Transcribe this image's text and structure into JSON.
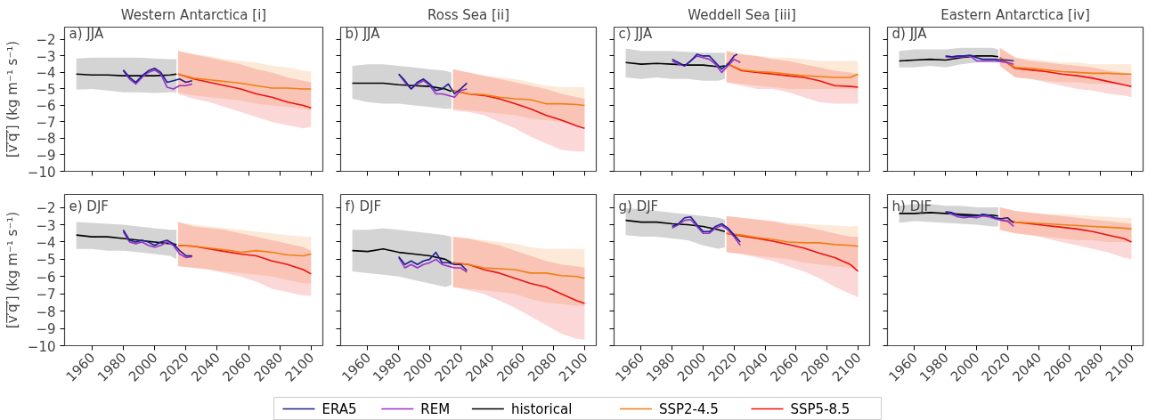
{
  "chart_data": [
    {
      "type": "line",
      "title": "Western Antarctica [i]",
      "ylabel": "[v̅′̅q̅′̅] (kg m⁻¹ s⁻¹)",
      "annotations": [
        "a) JJA"
      ],
      "tick_labels": "y",
      "legend": "bottom",
      "grid": false,
      "xlim": [
        1942.5,
        2107.5
      ],
      "ylim": [
        -10,
        -1.25
      ],
      "xticks": [
        1960,
        1980,
        2000,
        2020,
        2040,
        2060,
        2080,
        2100
      ],
      "yticks": [
        {
          "value": -2,
          "label": "−2"
        },
        {
          "value": -3,
          "label": "−3"
        },
        {
          "value": -4,
          "label": "−4"
        },
        {
          "value": -5,
          "label": "−5"
        },
        {
          "value": -6,
          "label": "−6"
        },
        {
          "value": -7,
          "label": "−7"
        },
        {
          "value": -8,
          "label": "−8"
        },
        {
          "value": -9,
          "label": "−9"
        },
        {
          "value": -10,
          "label": "−10"
        }
      ],
      "series": [
        {
          "name": "ERA5",
          "color": "#1f1f8f",
          "x": [
            1980,
            1984,
            1988,
            1992,
            1996,
            2000,
            2004,
            2008,
            2012,
            2016,
            2020,
            2024
          ],
          "values": [
            -3.85,
            -4.3,
            -4.6,
            -4.2,
            -3.9,
            -3.75,
            -4.0,
            -4.6,
            -4.5,
            -4.4,
            -4.6,
            -4.5
          ]
        },
        {
          "name": "REM",
          "color": "#9932cc",
          "x": [
            1980,
            1984,
            1988,
            1992,
            1996,
            2000,
            2004,
            2008,
            2012,
            2016,
            2020,
            2024
          ],
          "values": [
            -3.9,
            -4.4,
            -4.7,
            -4.3,
            -4.0,
            -3.85,
            -4.1,
            -4.9,
            -5.0,
            -4.8,
            -4.8,
            -4.7
          ]
        },
        {
          "name": "historical",
          "color": "#000000",
          "x": [
            1950,
            1960,
            1970,
            1980,
            1990,
            2000,
            2010,
            2014
          ],
          "values": [
            -4.1,
            -4.15,
            -4.15,
            -4.2,
            -4.2,
            -4.2,
            -4.15,
            -4.1
          ],
          "lower": [
            -5.05,
            -5.0,
            -5.1,
            -5.2,
            -5.2,
            -5.25,
            -5.2,
            -5.2
          ],
          "upper": [
            -3.15,
            -3.1,
            -3.1,
            -3.1,
            -3.1,
            -3.15,
            -3.2,
            -3.2
          ]
        },
        {
          "name": "SSP2-4.5",
          "color": "#f07f10",
          "x": [
            2015,
            2025,
            2035,
            2045,
            2055,
            2065,
            2075,
            2085,
            2095,
            2100
          ],
          "values": [
            -4.1,
            -4.35,
            -4.45,
            -4.55,
            -4.65,
            -4.8,
            -4.95,
            -4.95,
            -5.0,
            -5.0
          ],
          "lower": [
            -5.2,
            -5.4,
            -5.5,
            -5.6,
            -5.7,
            -5.9,
            -6.0,
            -6.1,
            -6.2,
            -6.3
          ],
          "upper": [
            -2.7,
            -2.9,
            -3.0,
            -3.2,
            -3.3,
            -3.4,
            -3.6,
            -3.7,
            -3.9,
            -3.95
          ]
        },
        {
          "name": "SSP5-8.5",
          "color": "#ee1111",
          "x": [
            2015,
            2025,
            2035,
            2045,
            2055,
            2065,
            2075,
            2085,
            2095,
            2100
          ],
          "values": [
            -4.1,
            -4.4,
            -4.6,
            -4.8,
            -5.0,
            -5.3,
            -5.5,
            -5.8,
            -6.0,
            -6.15
          ],
          "lower": [
            -5.3,
            -5.6,
            -5.8,
            -6.1,
            -6.4,
            -6.7,
            -7.0,
            -7.2,
            -7.4,
            -7.3
          ],
          "upper": [
            -2.7,
            -2.9,
            -3.1,
            -3.3,
            -3.5,
            -3.8,
            -4.0,
            -4.3,
            -4.5,
            -4.6
          ]
        }
      ]
    },
    {
      "type": "line",
      "title": "Ross Sea [ii]",
      "annotations": [
        "b) JJA"
      ],
      "tick_labels": false,
      "grid": false,
      "xlim": [
        1942.5,
        2107.5
      ],
      "ylim": [
        -10,
        -1.25
      ],
      "xticks": [
        1960,
        1980,
        2000,
        2020,
        2040,
        2060,
        2080,
        2100
      ],
      "yticks": [
        -2,
        -3,
        -4,
        -5,
        -6,
        -7,
        -8,
        -9,
        -10
      ],
      "series": [
        {
          "color": "#1f1f8f",
          "x": [
            1980,
            1984,
            1988,
            1992,
            1996,
            2000,
            2004,
            2008,
            2012,
            2016,
            2020,
            2024
          ],
          "values": [
            -4.1,
            -4.5,
            -5.0,
            -4.6,
            -4.4,
            -4.7,
            -5.1,
            -5.0,
            -4.7,
            -5.3,
            -5.0,
            -4.65
          ]
        },
        {
          "color": "#9932cc",
          "x": [
            1980,
            1984,
            1988,
            1992,
            1996,
            2000,
            2004,
            2008,
            2012,
            2016,
            2020,
            2024
          ],
          "values": [
            -4.1,
            -4.6,
            -5.0,
            -4.7,
            -4.5,
            -4.8,
            -5.3,
            -5.3,
            -5.4,
            -5.5,
            -5.1,
            -5.0
          ]
        },
        {
          "color": "#000000",
          "x": [
            1950,
            1960,
            1970,
            1980,
            1990,
            2000,
            2010,
            2014
          ],
          "values": [
            -4.65,
            -4.65,
            -4.65,
            -4.75,
            -4.8,
            -4.85,
            -5.0,
            -5.15
          ],
          "lower": [
            -5.6,
            -5.8,
            -5.9,
            -5.9,
            -6.0,
            -6.1,
            -6.2,
            -6.2
          ],
          "upper": [
            -3.6,
            -3.5,
            -3.5,
            -3.6,
            -3.7,
            -3.8,
            -3.9,
            -4.0
          ]
        },
        {
          "color": "#f07f10",
          "x": [
            2015,
            2025,
            2035,
            2045,
            2055,
            2065,
            2075,
            2085,
            2095,
            2100
          ],
          "values": [
            -5.1,
            -5.3,
            -5.35,
            -5.5,
            -5.6,
            -5.65,
            -5.9,
            -5.9,
            -5.95,
            -6.0
          ],
          "lower": [
            -6.2,
            -6.3,
            -6.4,
            -6.5,
            -6.6,
            -6.8,
            -6.9,
            -7.0,
            -7.2,
            -7.2
          ],
          "upper": [
            -3.8,
            -4.0,
            -4.2,
            -4.3,
            -4.4,
            -4.6,
            -4.8,
            -4.9,
            -4.9,
            -4.9
          ]
        },
        {
          "color": "#ee1111",
          "x": [
            2015,
            2025,
            2035,
            2045,
            2055,
            2065,
            2075,
            2085,
            2095,
            2100
          ],
          "values": [
            -5.1,
            -5.3,
            -5.4,
            -5.6,
            -5.9,
            -6.2,
            -6.6,
            -6.9,
            -7.25,
            -7.4
          ],
          "lower": [
            -6.3,
            -6.4,
            -6.6,
            -7.0,
            -7.4,
            -7.9,
            -8.3,
            -8.7,
            -8.8,
            -8.8
          ],
          "upper": [
            -3.8,
            -4.0,
            -4.2,
            -4.4,
            -4.6,
            -4.8,
            -5.0,
            -5.3,
            -5.5,
            -5.6
          ]
        }
      ]
    },
    {
      "type": "line",
      "title": "Weddell Sea [iii]",
      "annotations": [
        "c) JJA"
      ],
      "tick_labels": false,
      "grid": false,
      "xlim": [
        1942.5,
        2107.5
      ],
      "ylim": [
        -10,
        -1.25
      ],
      "xticks": [
        1960,
        1980,
        2000,
        2020,
        2040,
        2060,
        2080,
        2100
      ],
      "yticks": [
        -2,
        -3,
        -4,
        -5,
        -6,
        -7,
        -8,
        -9,
        -10
      ],
      "series": [
        {
          "color": "#1f1f8f",
          "x": [
            1980,
            1984,
            1988,
            1992,
            1996,
            2000,
            2004,
            2008,
            2012,
            2016,
            2020,
            2022
          ],
          "values": [
            -3.2,
            -3.4,
            -3.6,
            -3.3,
            -2.9,
            -3.0,
            -3.0,
            -3.4,
            -3.8,
            -3.5,
            -3.0,
            -2.9
          ]
        },
        {
          "color": "#9932cc",
          "x": [
            1980,
            1984,
            1988,
            1992,
            1996,
            2000,
            2004,
            2008,
            2012,
            2016,
            2020,
            2024
          ],
          "values": [
            -3.3,
            -3.5,
            -3.6,
            -3.3,
            -3.0,
            -3.1,
            -3.2,
            -3.5,
            -4.0,
            -3.6,
            -3.2,
            -3.4
          ]
        },
        {
          "color": "#000000",
          "x": [
            1950,
            1960,
            1970,
            1980,
            1990,
            2000,
            2010,
            2014
          ],
          "values": [
            -3.4,
            -3.5,
            -3.45,
            -3.5,
            -3.55,
            -3.55,
            -3.65,
            -3.6
          ],
          "lower": [
            -4.3,
            -4.4,
            -4.3,
            -4.4,
            -4.4,
            -4.5,
            -4.5,
            -4.4
          ],
          "upper": [
            -2.55,
            -2.7,
            -2.7,
            -2.7,
            -2.75,
            -2.8,
            -2.8,
            -2.8
          ]
        },
        {
          "color": "#f07f10",
          "x": [
            2015,
            2025,
            2035,
            2045,
            2055,
            2065,
            2075,
            2085,
            2095,
            2100
          ],
          "values": [
            -3.45,
            -3.85,
            -3.95,
            -4.0,
            -4.1,
            -4.2,
            -4.25,
            -4.3,
            -4.3,
            -4.1
          ],
          "lower": [
            -4.6,
            -4.7,
            -4.8,
            -4.9,
            -5.0,
            -5.0,
            -5.0,
            -5.0,
            -5.0,
            -5.0
          ],
          "upper": [
            -2.7,
            -2.9,
            -3.0,
            -3.1,
            -3.1,
            -3.2,
            -3.3,
            -3.3,
            -3.3,
            -3.3
          ]
        },
        {
          "color": "#ee1111",
          "x": [
            2015,
            2025,
            2035,
            2045,
            2055,
            2065,
            2075,
            2085,
            2095,
            2100
          ],
          "values": [
            -3.45,
            -3.9,
            -4.0,
            -4.1,
            -4.2,
            -4.3,
            -4.5,
            -4.8,
            -4.85,
            -4.9
          ],
          "lower": [
            -4.6,
            -4.8,
            -5.0,
            -5.0,
            -5.2,
            -5.5,
            -5.8,
            -5.9,
            -5.9,
            -5.9
          ],
          "upper": [
            -2.7,
            -2.9,
            -3.0,
            -3.2,
            -3.3,
            -3.5,
            -3.7,
            -3.9,
            -4.0,
            -4.1
          ]
        }
      ]
    },
    {
      "type": "line",
      "title": "Eastern Antarctica [iv]",
      "annotations": [
        "d) JJA"
      ],
      "tick_labels": false,
      "grid": false,
      "xlim": [
        1942.5,
        2107.5
      ],
      "ylim": [
        -10,
        -1.25
      ],
      "xticks": [
        1960,
        1980,
        2000,
        2020,
        2040,
        2060,
        2080,
        2100
      ],
      "yticks": [
        -2,
        -3,
        -4,
        -5,
        -6,
        -7,
        -8,
        -9,
        -10
      ],
      "series": [
        {
          "color": "#1f1f8f",
          "x": [
            1980,
            1984,
            1988,
            1992,
            1996,
            2000,
            2004,
            2008,
            2012,
            2016,
            2020,
            2024
          ],
          "values": [
            -3.0,
            -3.05,
            -3.0,
            -3.0,
            -2.95,
            -3.1,
            -3.2,
            -3.2,
            -3.2,
            -3.25,
            -3.25,
            -3.3
          ]
        },
        {
          "color": "#9932cc",
          "x": [
            1980,
            1984,
            1988,
            1992,
            1996,
            2000,
            2004,
            2008,
            2012,
            2016,
            2020,
            2024
          ],
          "values": [
            -3.05,
            -3.1,
            -3.05,
            -3.05,
            -3.0,
            -3.3,
            -3.3,
            -3.3,
            -3.3,
            -3.35,
            -3.4,
            -3.5
          ]
        },
        {
          "color": "#000000",
          "x": [
            1950,
            1960,
            1970,
            1980,
            1990,
            2000,
            2010,
            2014
          ],
          "values": [
            -3.3,
            -3.25,
            -3.2,
            -3.25,
            -3.1,
            -3.0,
            -3.0,
            -3.05
          ],
          "lower": [
            -3.7,
            -3.7,
            -3.6,
            -3.7,
            -3.5,
            -3.4,
            -3.4,
            -3.4
          ],
          "upper": [
            -2.7,
            -2.6,
            -2.6,
            -2.6,
            -2.5,
            -2.5,
            -2.5,
            -2.6
          ]
        },
        {
          "color": "#f07f10",
          "x": [
            2015,
            2025,
            2035,
            2045,
            2055,
            2065,
            2075,
            2085,
            2095,
            2100
          ],
          "values": [
            -3.1,
            -3.7,
            -3.75,
            -3.85,
            -3.95,
            -4.0,
            -4.05,
            -4.05,
            -4.1,
            -4.1
          ],
          "lower": [
            -3.6,
            -4.3,
            -4.4,
            -4.5,
            -4.6,
            -4.6,
            -4.7,
            -4.7,
            -4.7,
            -4.7
          ],
          "upper": [
            -2.5,
            -3.1,
            -3.2,
            -3.3,
            -3.4,
            -3.4,
            -3.5,
            -3.5,
            -3.5,
            -3.5
          ]
        },
        {
          "color": "#ee1111",
          "x": [
            2015,
            2025,
            2035,
            2045,
            2055,
            2065,
            2075,
            2085,
            2095,
            2100
          ],
          "values": [
            -3.1,
            -3.75,
            -3.85,
            -3.95,
            -4.1,
            -4.2,
            -4.35,
            -4.55,
            -4.75,
            -4.85
          ],
          "lower": [
            -3.6,
            -4.3,
            -4.4,
            -4.6,
            -4.8,
            -5.0,
            -5.1,
            -5.3,
            -5.4,
            -5.5
          ],
          "upper": [
            -2.5,
            -3.1,
            -3.3,
            -3.4,
            -3.5,
            -3.6,
            -3.7,
            -3.9,
            -4.0,
            -4.1
          ]
        }
      ]
    },
    {
      "type": "line",
      "ylabel": "[v̅′̅q̅′̅] (kg m⁻¹ s⁻¹)",
      "annotations": [
        "e) DJF"
      ],
      "grid": false,
      "xlim": [
        1942.5,
        2107.5
      ],
      "ylim": [
        -10,
        -1.25
      ],
      "xticks": [
        1960,
        1980,
        2000,
        2020,
        2040,
        2060,
        2080,
        2100
      ],
      "yticks": [
        {
          "value": -2,
          "label": "−2"
        },
        {
          "value": -3,
          "label": "−3"
        },
        {
          "value": -4,
          "label": "−4"
        },
        {
          "value": -5,
          "label": "−5"
        },
        {
          "value": -6,
          "label": "−6"
        },
        {
          "value": -7,
          "label": "−7"
        },
        {
          "value": -8,
          "label": "−8"
        },
        {
          "value": -9,
          "label": "−9"
        },
        {
          "value": -10,
          "label": "−10"
        }
      ],
      "series": [
        {
          "color": "#1f1f8f",
          "x": [
            1980,
            1984,
            1988,
            1992,
            1996,
            2000,
            2004,
            2008,
            2012,
            2016,
            2020,
            2024
          ],
          "values": [
            -3.3,
            -3.9,
            -4.0,
            -3.9,
            -4.0,
            -4.2,
            -4.0,
            -3.9,
            -4.1,
            -4.5,
            -4.8,
            -4.8
          ]
        },
        {
          "color": "#9932cc",
          "x": [
            1980,
            1984,
            1988,
            1992,
            1996,
            2000,
            2004,
            2008,
            2012,
            2016,
            2020,
            2024
          ],
          "values": [
            -3.4,
            -4.0,
            -4.1,
            -4.0,
            -4.2,
            -4.3,
            -4.2,
            -4.0,
            -4.2,
            -4.7,
            -4.9,
            -4.85
          ]
        },
        {
          "color": "#000000",
          "x": [
            1950,
            1960,
            1970,
            1980,
            1990,
            2000,
            2010,
            2014
          ],
          "values": [
            -3.6,
            -3.7,
            -3.7,
            -3.8,
            -3.9,
            -4.0,
            -4.1,
            -4.15
          ],
          "lower": [
            -4.4,
            -4.4,
            -4.5,
            -4.5,
            -4.6,
            -4.7,
            -4.8,
            -5.0
          ],
          "upper": [
            -2.85,
            -2.9,
            -2.95,
            -3.0,
            -3.1,
            -3.2,
            -3.3,
            -3.3
          ]
        },
        {
          "color": "#f07f10",
          "x": [
            2015,
            2025,
            2035,
            2045,
            2055,
            2065,
            2075,
            2085,
            2095,
            2100
          ],
          "values": [
            -4.2,
            -4.25,
            -4.35,
            -4.45,
            -4.6,
            -4.5,
            -4.6,
            -4.75,
            -4.8,
            -4.7
          ],
          "lower": [
            -5.4,
            -5.5,
            -5.6,
            -5.7,
            -5.8,
            -5.9,
            -6.0,
            -6.2,
            -6.4,
            -6.4
          ],
          "upper": [
            -2.85,
            -3.0,
            -3.1,
            -3.2,
            -3.3,
            -3.4,
            -3.5,
            -3.6,
            -3.7,
            -3.7
          ]
        },
        {
          "color": "#ee1111",
          "x": [
            2015,
            2025,
            2035,
            2045,
            2055,
            2065,
            2075,
            2085,
            2095,
            2100
          ],
          "values": [
            -4.2,
            -4.25,
            -4.4,
            -4.55,
            -4.7,
            -4.8,
            -5.1,
            -5.3,
            -5.6,
            -5.85
          ],
          "lower": [
            -5.4,
            -5.5,
            -5.6,
            -5.8,
            -6.0,
            -6.3,
            -6.7,
            -6.9,
            -7.1,
            -7.1
          ],
          "upper": [
            -2.85,
            -3.1,
            -3.2,
            -3.3,
            -3.5,
            -3.7,
            -3.9,
            -4.1,
            -4.3,
            -4.5
          ]
        }
      ]
    },
    {
      "type": "line",
      "annotations": [
        "f) DJF"
      ],
      "tick_labels": "x",
      "grid": false,
      "xlim": [
        1942.5,
        2107.5
      ],
      "ylim": [
        -10,
        -1.25
      ],
      "xticks": [
        1960,
        1980,
        2000,
        2020,
        2040,
        2060,
        2080,
        2100
      ],
      "yticks": [
        -2,
        -3,
        -4,
        -5,
        -6,
        -7,
        -8,
        -9,
        -10
      ],
      "series": [
        {
          "color": "#1f1f8f",
          "x": [
            1980,
            1984,
            1988,
            1992,
            1996,
            2000,
            2004,
            2008,
            2012,
            2016,
            2020,
            2024
          ],
          "values": [
            -4.85,
            -5.3,
            -5.1,
            -5.3,
            -5.1,
            -5.0,
            -4.6,
            -5.2,
            -5.2,
            -5.3,
            -5.3,
            -5.65
          ]
        },
        {
          "color": "#9932cc",
          "x": [
            1980,
            1984,
            1988,
            1992,
            1996,
            2000,
            2004,
            2008,
            2012,
            2016,
            2020,
            2024
          ],
          "values": [
            -4.9,
            -5.5,
            -5.3,
            -5.5,
            -5.3,
            -5.2,
            -5.0,
            -5.3,
            -5.4,
            -5.5,
            -5.5,
            -5.75
          ]
        },
        {
          "color": "#000000",
          "x": [
            1950,
            1960,
            1970,
            1980,
            1990,
            2000,
            2010,
            2014
          ],
          "values": [
            -4.5,
            -4.55,
            -4.4,
            -4.6,
            -4.7,
            -4.8,
            -5.0,
            -5.2
          ],
          "lower": [
            -5.7,
            -5.8,
            -5.9,
            -6.0,
            -6.2,
            -6.4,
            -6.6,
            -6.5
          ],
          "upper": [
            -3.3,
            -3.3,
            -3.2,
            -3.3,
            -3.4,
            -3.5,
            -3.6,
            -3.7
          ]
        },
        {
          "color": "#f07f10",
          "x": [
            2015,
            2025,
            2035,
            2045,
            2055,
            2065,
            2075,
            2085,
            2095,
            2100
          ],
          "values": [
            -5.2,
            -5.3,
            -5.5,
            -5.55,
            -5.6,
            -5.8,
            -5.8,
            -5.95,
            -6.0,
            -6.1
          ],
          "lower": [
            -6.6,
            -6.7,
            -6.8,
            -6.9,
            -7.0,
            -7.3,
            -7.5,
            -7.6,
            -7.7,
            -7.7
          ],
          "upper": [
            -3.7,
            -3.8,
            -3.9,
            -4.0,
            -4.1,
            -4.3,
            -4.4,
            -4.4,
            -4.4,
            -4.4
          ]
        },
        {
          "color": "#ee1111",
          "x": [
            2015,
            2025,
            2035,
            2045,
            2055,
            2065,
            2075,
            2085,
            2095,
            2100
          ],
          "values": [
            -5.2,
            -5.3,
            -5.6,
            -5.8,
            -6.1,
            -6.4,
            -6.6,
            -7.0,
            -7.4,
            -7.55
          ],
          "lower": [
            -6.6,
            -6.8,
            -7.0,
            -7.4,
            -7.8,
            -8.3,
            -8.8,
            -9.3,
            -9.6,
            -9.65
          ],
          "upper": [
            -3.7,
            -3.8,
            -4.0,
            -4.2,
            -4.5,
            -4.8,
            -5.1,
            -5.3,
            -5.4,
            -5.5
          ]
        }
      ]
    },
    {
      "type": "line",
      "annotations": [
        "g) DJF"
      ],
      "tick_labels": "x",
      "grid": false,
      "xlim": [
        1942.5,
        2107.5
      ],
      "ylim": [
        -10,
        -1.25
      ],
      "xticks": [
        1960,
        1980,
        2000,
        2020,
        2040,
        2060,
        2080,
        2100
      ],
      "yticks": [
        -2,
        -3,
        -4,
        -5,
        -6,
        -7,
        -8,
        -9,
        -10
      ],
      "series": [
        {
          "color": "#1f1f8f",
          "x": [
            1980,
            1984,
            1988,
            1992,
            1996,
            2000,
            2004,
            2008,
            2012,
            2016,
            2020,
            2024
          ],
          "values": [
            -3.1,
            -2.95,
            -2.6,
            -2.55,
            -3.0,
            -3.4,
            -3.4,
            -3.1,
            -2.95,
            -3.2,
            -3.6,
            -4.0
          ]
        },
        {
          "color": "#9932cc",
          "x": [
            1980,
            1984,
            1988,
            1992,
            1996,
            2000,
            2004,
            2008,
            2012,
            2016,
            2020,
            2024
          ],
          "values": [
            -3.2,
            -3.0,
            -2.75,
            -2.7,
            -3.1,
            -3.5,
            -3.5,
            -3.2,
            -3.05,
            -3.3,
            -3.7,
            -4.2
          ]
        },
        {
          "color": "#000000",
          "x": [
            1950,
            1960,
            1970,
            1980,
            1990,
            2000,
            2010,
            2014
          ],
          "values": [
            -2.75,
            -2.85,
            -2.85,
            -2.95,
            -3.0,
            -3.1,
            -3.3,
            -3.4
          ],
          "lower": [
            -3.6,
            -3.7,
            -3.7,
            -3.8,
            -3.9,
            -4.2,
            -4.4,
            -4.3
          ],
          "upper": [
            -2.05,
            -2.1,
            -2.2,
            -2.3,
            -2.4,
            -2.5,
            -2.6,
            -2.7
          ]
        },
        {
          "color": "#f07f10",
          "x": [
            2015,
            2025,
            2035,
            2045,
            2055,
            2065,
            2075,
            2085,
            2095,
            2100
          ],
          "values": [
            -3.5,
            -3.6,
            -3.75,
            -3.85,
            -4.0,
            -4.05,
            -4.05,
            -4.15,
            -4.2,
            -4.25
          ],
          "lower": [
            -4.6,
            -4.7,
            -4.8,
            -4.9,
            -5.0,
            -5.2,
            -5.3,
            -5.4,
            -5.5,
            -5.5
          ],
          "upper": [
            -2.5,
            -2.6,
            -2.7,
            -2.8,
            -2.9,
            -2.95,
            -3.0,
            -3.05,
            -3.1,
            -3.05
          ]
        },
        {
          "color": "#ee1111",
          "x": [
            2015,
            2025,
            2035,
            2045,
            2055,
            2065,
            2075,
            2085,
            2095,
            2100
          ],
          "values": [
            -3.5,
            -3.65,
            -3.8,
            -3.95,
            -4.15,
            -4.35,
            -4.65,
            -4.9,
            -5.3,
            -5.7
          ],
          "lower": [
            -4.6,
            -4.7,
            -4.9,
            -5.1,
            -5.4,
            -5.7,
            -6.1,
            -6.6,
            -7.0,
            -7.2
          ],
          "upper": [
            -2.5,
            -2.6,
            -2.7,
            -2.8,
            -3.0,
            -3.1,
            -3.3,
            -3.5,
            -3.7,
            -3.7
          ]
        }
      ]
    },
    {
      "type": "line",
      "annotations": [
        "h) DJF"
      ],
      "tick_labels": "x",
      "grid": false,
      "xlim": [
        1942.5,
        2107.5
      ],
      "ylim": [
        -10,
        -1.25
      ],
      "xticks": [
        1960,
        1980,
        2000,
        2020,
        2040,
        2060,
        2080,
        2100
      ],
      "yticks": [
        -2,
        -3,
        -4,
        -5,
        -6,
        -7,
        -8,
        -9,
        -10
      ],
      "series": [
        {
          "color": "#1f1f8f",
          "x": [
            1980,
            1984,
            1988,
            1992,
            1996,
            2000,
            2004,
            2008,
            2012,
            2016,
            2020,
            2024
          ],
          "values": [
            -2.25,
            -2.3,
            -2.45,
            -2.5,
            -2.5,
            -2.5,
            -2.4,
            -2.45,
            -2.6,
            -2.65,
            -2.6,
            -2.9
          ]
        },
        {
          "color": "#9932cc",
          "x": [
            1980,
            1984,
            1988,
            1992,
            1996,
            2000,
            2004,
            2008,
            2012,
            2016,
            2020,
            2024
          ],
          "values": [
            -2.25,
            -2.4,
            -2.55,
            -2.6,
            -2.55,
            -2.6,
            -2.5,
            -2.55,
            -2.65,
            -2.75,
            -2.8,
            -3.1
          ]
        },
        {
          "color": "#000000",
          "x": [
            1950,
            1960,
            1970,
            1980,
            1990,
            2000,
            2010,
            2014
          ],
          "values": [
            -2.35,
            -2.35,
            -2.3,
            -2.35,
            -2.4,
            -2.45,
            -2.45,
            -2.5
          ],
          "lower": [
            -2.9,
            -2.8,
            -2.85,
            -2.9,
            -2.95,
            -3.0,
            -3.1,
            -3.1
          ],
          "upper": [
            -1.9,
            -1.8,
            -1.8,
            -1.9,
            -1.9,
            -2.0,
            -2.0,
            -2.0
          ]
        },
        {
          "color": "#f07f10",
          "x": [
            2015,
            2025,
            2035,
            2045,
            2055,
            2065,
            2075,
            2085,
            2095,
            2100
          ],
          "values": [
            -2.7,
            -2.85,
            -2.9,
            -2.95,
            -3.0,
            -3.05,
            -3.1,
            -3.15,
            -3.2,
            -3.25
          ],
          "lower": [
            -3.3,
            -3.5,
            -3.6,
            -3.7,
            -3.8,
            -3.9,
            -3.9,
            -4.0,
            -4.0,
            -4.0
          ],
          "upper": [
            -2.0,
            -2.2,
            -2.3,
            -2.4,
            -2.4,
            -2.45,
            -2.5,
            -2.55,
            -2.6,
            -2.6
          ]
        },
        {
          "color": "#ee1111",
          "x": [
            2015,
            2025,
            2035,
            2045,
            2055,
            2065,
            2075,
            2085,
            2095,
            2100
          ],
          "values": [
            -2.7,
            -2.85,
            -2.95,
            -3.05,
            -3.15,
            -3.25,
            -3.4,
            -3.6,
            -3.8,
            -4.0
          ],
          "lower": [
            -3.3,
            -3.5,
            -3.6,
            -3.8,
            -4.0,
            -4.2,
            -4.4,
            -4.6,
            -4.9,
            -5.0
          ],
          "upper": [
            -2.0,
            -2.2,
            -2.3,
            -2.4,
            -2.5,
            -2.6,
            -2.7,
            -2.8,
            -2.9,
            -2.95
          ]
        }
      ]
    }
  ]
}
